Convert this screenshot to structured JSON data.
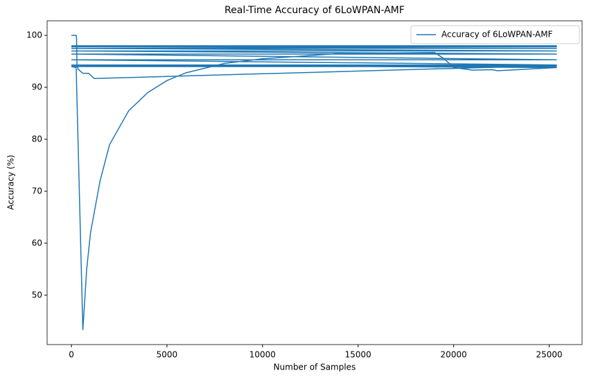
{
  "chart_data": {
    "type": "line",
    "title": "Real-Time Accuracy of 6LoWPAN-AMF",
    "x_label": "Number of Samples",
    "y_label": "Accuracy (%)",
    "xlim": [
      -1270,
      26720
    ],
    "ylim": [
      40.5,
      102.8
    ],
    "xticks": [
      0,
      5000,
      10000,
      15000,
      20000,
      25000
    ],
    "yticks": [
      50,
      60,
      70,
      80,
      90,
      100
    ],
    "legend": "upper right",
    "series": [
      {
        "name": "Accuracy of 6LoWPAN-AMF",
        "color": "#1f77b4",
        "x": [
          0,
          250,
          270,
          290,
          350,
          500,
          600,
          900,
          1200,
          25400,
          0,
          25400,
          0,
          250,
          600,
          800,
          1000,
          1500,
          2000,
          3000,
          4000,
          5000,
          6000,
          8000,
          10000,
          14000,
          19000,
          19500,
          20000,
          21000,
          22000,
          22300,
          25400,
          0,
          25400,
          0,
          25400,
          0,
          25400,
          0,
          25400,
          0,
          25400,
          0,
          25400,
          0,
          25400
        ],
        "values": [
          100,
          100,
          99.5,
          94.5,
          93.5,
          93,
          92.7,
          92.7,
          91.7,
          94.2,
          94.2,
          94,
          94,
          93.8,
          43.3,
          55,
          62,
          72,
          79,
          85.5,
          89,
          91.3,
          92.8,
          94.6,
          95.5,
          96.5,
          96.7,
          95.5,
          93.8,
          93.3,
          93.4,
          93.2,
          93.8,
          94.3,
          94.3,
          95.3,
          95.3,
          96.4,
          96.4,
          97,
          97,
          97.5,
          97.5,
          97.8,
          97.8,
          98,
          98
        ]
      }
    ]
  }
}
